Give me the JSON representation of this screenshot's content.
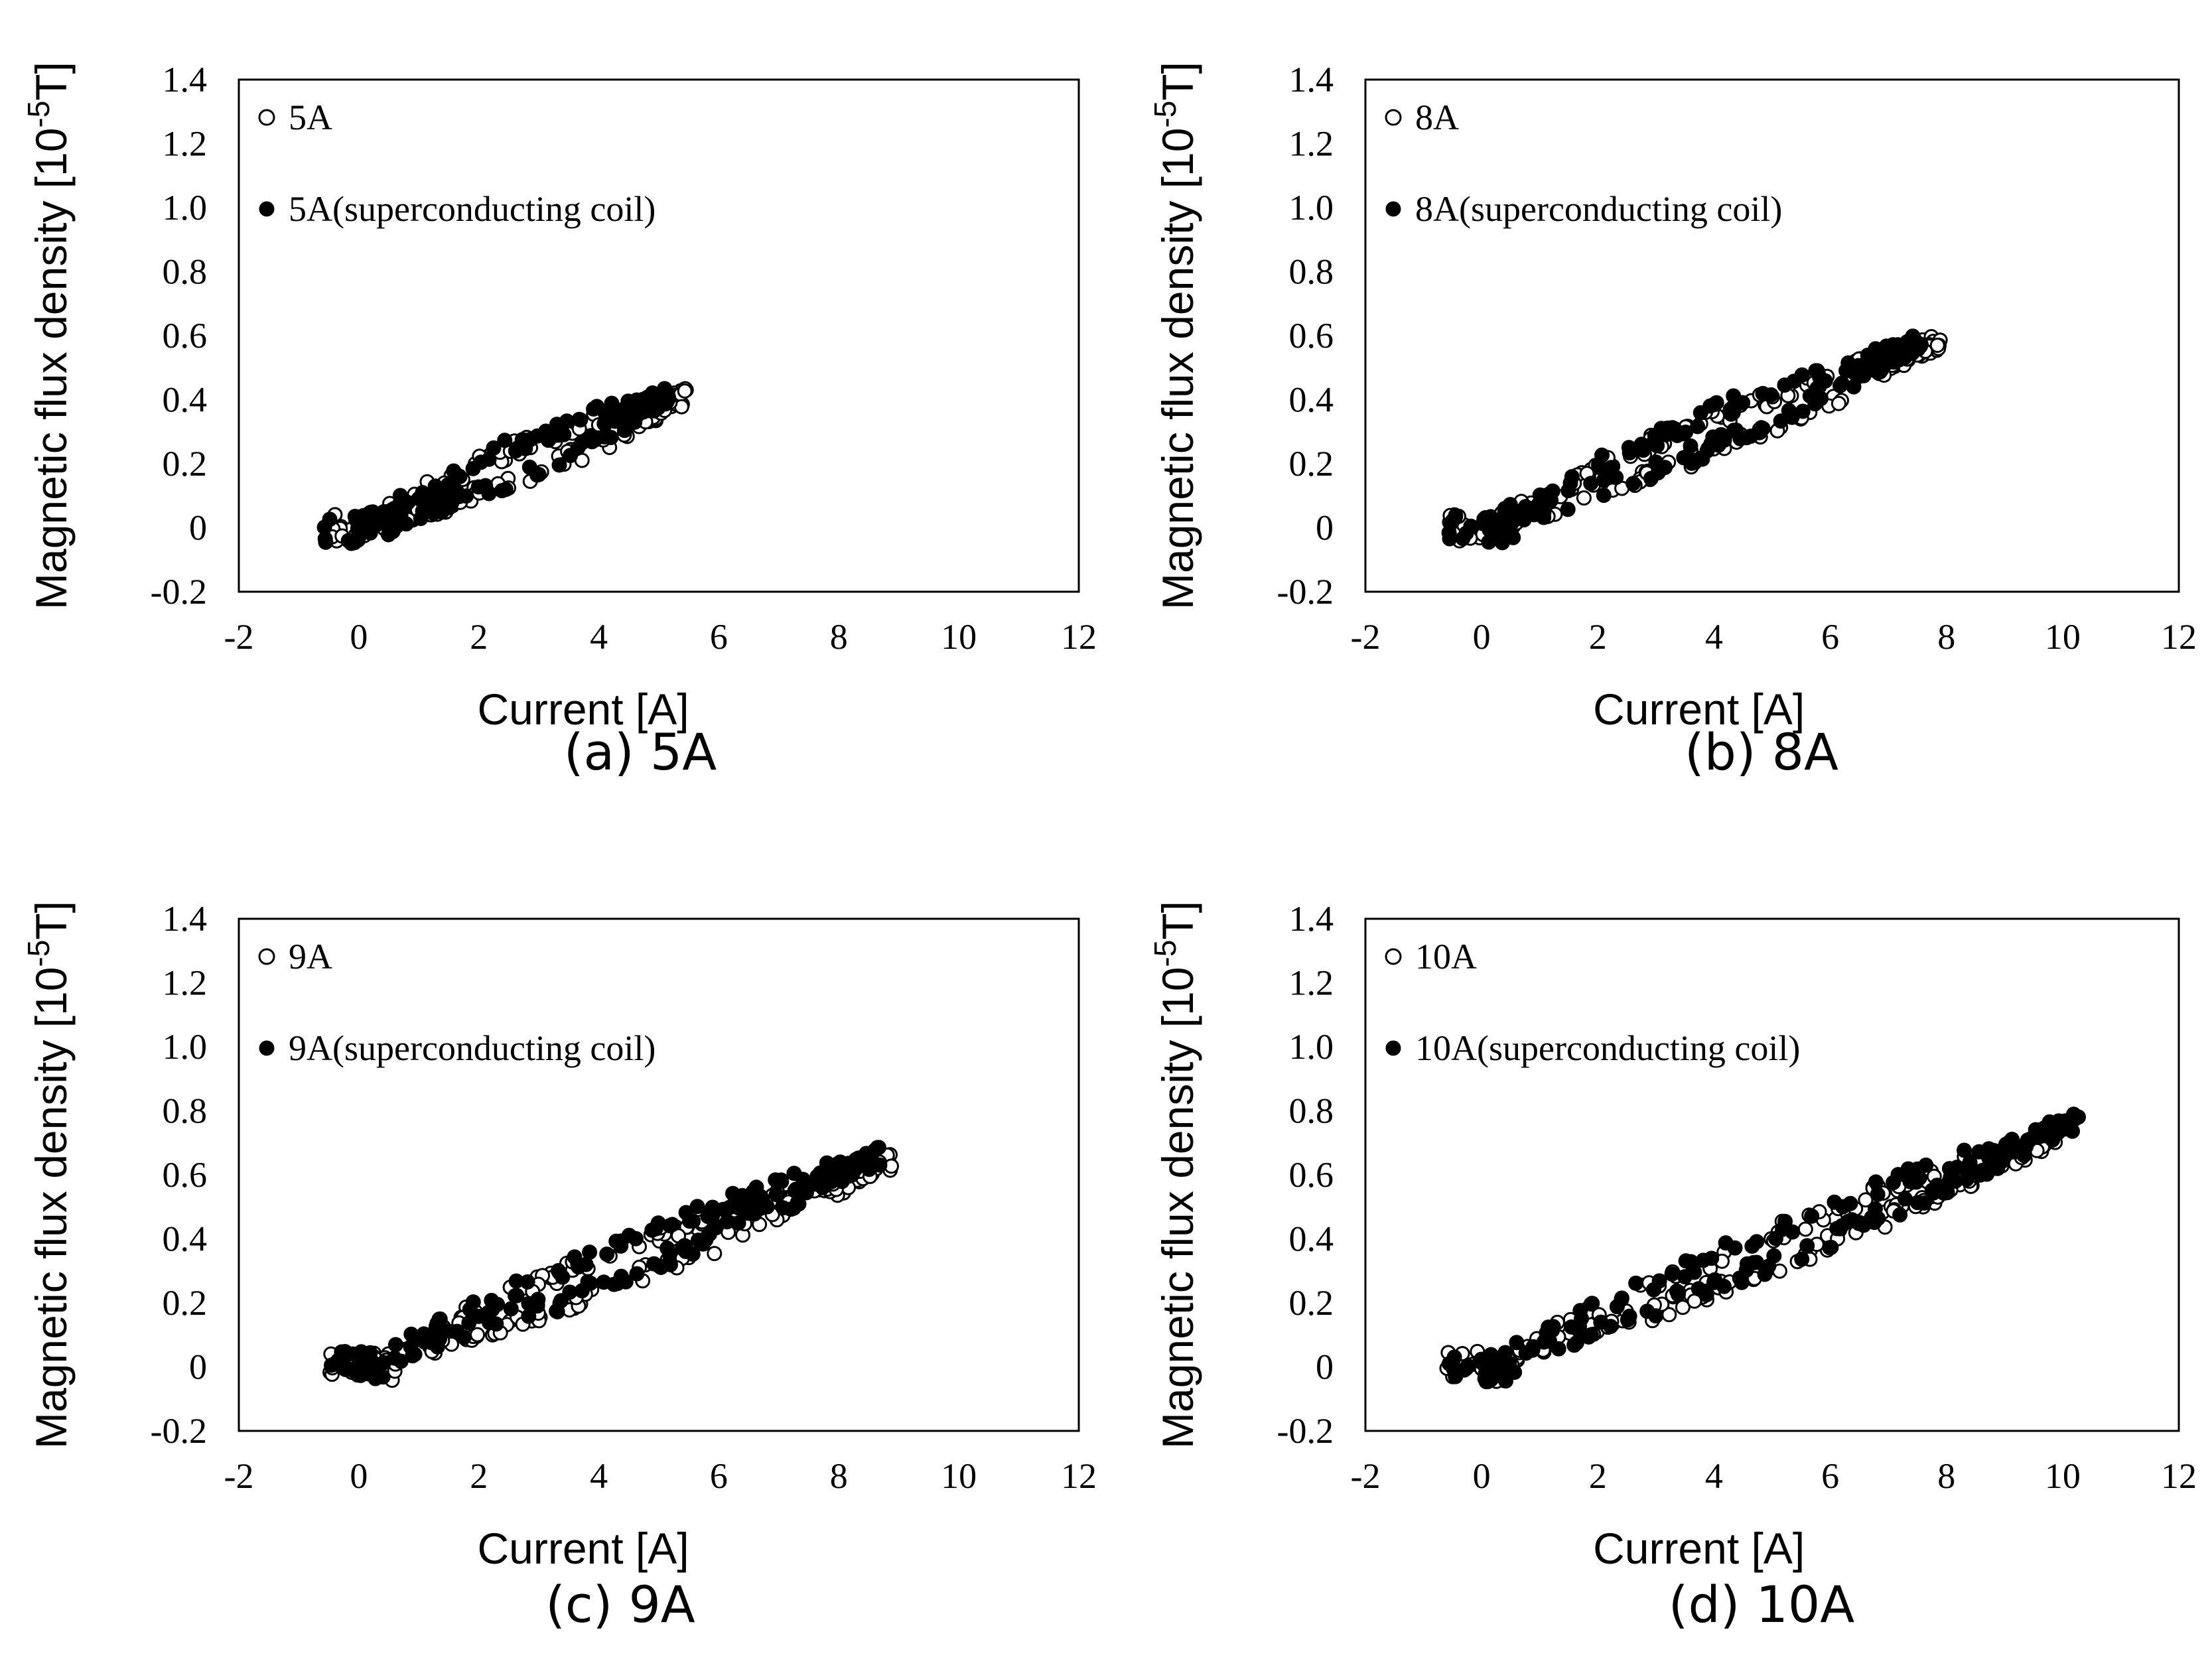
{
  "chart_data": [
    {
      "type": "scatter",
      "caption": "(a) 5A",
      "xlabel": "Current [A]",
      "ylabel": "Magnetic flux density [10^-5T]",
      "xlim": [
        -2,
        12
      ],
      "ylim": [
        -0.2,
        1.4
      ],
      "xticks": [
        "-2",
        "0",
        "2",
        "4",
        "6",
        "8",
        "10",
        "12"
      ],
      "yticks": [
        "-0.2",
        "0",
        "0.2",
        "0.4",
        "0.6",
        "0.8",
        "1.0",
        "1.2",
        "1.4"
      ],
      "legend_position": "top-left",
      "series": [
        {
          "name": "5A",
          "marker": "open-circle",
          "max_current": 5.5,
          "slope": 0.075,
          "spread": 0.05
        },
        {
          "name": "5A(superconducting coil)",
          "marker": "filled-circle",
          "max_current": 5.2,
          "slope": 0.08,
          "spread": 0.05
        }
      ]
    },
    {
      "type": "scatter",
      "caption": "(b) 8A",
      "xlabel": "Current [A]",
      "ylabel": "Magnetic flux density [10^-5T]",
      "xlim": [
        -2,
        12
      ],
      "ylim": [
        -0.2,
        1.4
      ],
      "xticks": [
        "-2",
        "0",
        "2",
        "4",
        "6",
        "8",
        "10",
        "12"
      ],
      "yticks": [
        "-0.2",
        "0",
        "0.2",
        "0.4",
        "0.6",
        "0.8",
        "1.0",
        "1.2",
        "1.4"
      ],
      "legend_position": "top-left",
      "series": [
        {
          "name": "8A",
          "marker": "open-circle",
          "max_current": 7.9,
          "slope": 0.073,
          "spread": 0.05
        },
        {
          "name": "8A(superconducting coil)",
          "marker": "filled-circle",
          "max_current": 7.6,
          "slope": 0.077,
          "spread": 0.05
        }
      ]
    },
    {
      "type": "scatter",
      "caption": "(c) 9A",
      "xlabel": "Current [A]",
      "ylabel": "Magnetic flux density [10^-5T]",
      "xlim": [
        -2,
        12
      ],
      "ylim": [
        -0.2,
        1.4
      ],
      "xticks": [
        "-2",
        "0",
        "2",
        "4",
        "6",
        "8",
        "10",
        "12"
      ],
      "yticks": [
        "-0.2",
        "0",
        "0.2",
        "0.4",
        "0.6",
        "0.8",
        "1.0",
        "1.2",
        "1.4"
      ],
      "legend_position": "top-left",
      "series": [
        {
          "name": "9A",
          "marker": "open-circle",
          "max_current": 8.9,
          "slope": 0.072,
          "spread": 0.05
        },
        {
          "name": "9A(superconducting coil)",
          "marker": "filled-circle",
          "max_current": 8.7,
          "slope": 0.076,
          "spread": 0.05
        }
      ]
    },
    {
      "type": "scatter",
      "caption": "(d) 10A",
      "xlabel": "Current [A]",
      "ylabel": "Magnetic flux density [10^-5T]",
      "xlim": [
        -2,
        12
      ],
      "ylim": [
        -0.2,
        1.4
      ],
      "xticks": [
        "-2",
        "0",
        "2",
        "4",
        "6",
        "8",
        "10",
        "12"
      ],
      "yticks": [
        "-0.2",
        "0",
        "0.2",
        "0.4",
        "0.6",
        "0.8",
        "1.0",
        "1.2",
        "1.4"
      ],
      "legend_position": "top-left",
      "series": [
        {
          "name": "10A",
          "marker": "open-circle",
          "max_current": 9.9,
          "slope": 0.073,
          "spread": 0.05
        },
        {
          "name": "10A(superconducting coil)",
          "marker": "filled-circle",
          "max_current": 10.3,
          "slope": 0.075,
          "spread": 0.05
        }
      ]
    }
  ]
}
